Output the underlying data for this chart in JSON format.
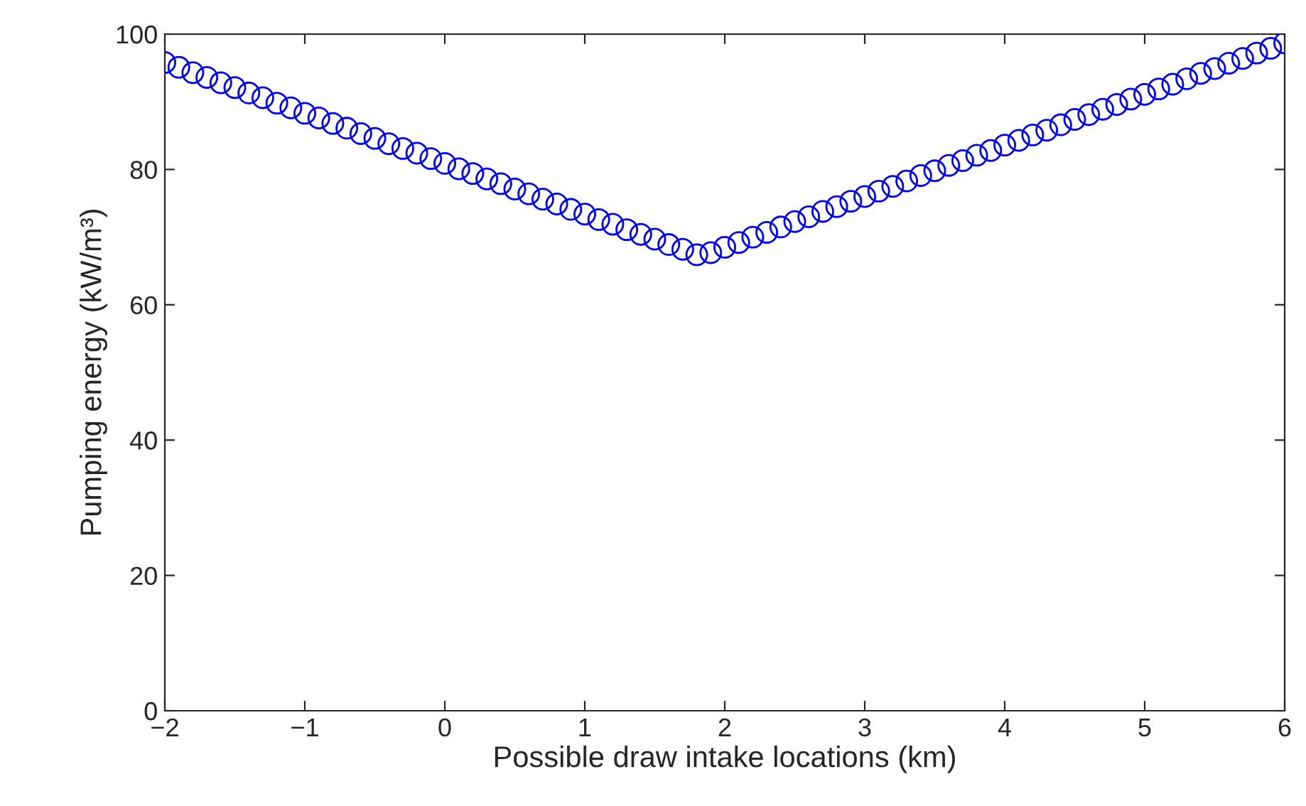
{
  "chart_data": {
    "type": "scatter",
    "xlabel": "Possible draw intake locations (km)",
    "ylabel": "Pumping energy (kW/m³)",
    "x": [
      -2.0,
      -1.9,
      -1.8,
      -1.7,
      -1.6,
      -1.5,
      -1.4,
      -1.3,
      -1.2,
      -1.1,
      -1.0,
      -0.9,
      -0.8,
      -0.7,
      -0.6,
      -0.5,
      -0.4,
      -0.3,
      -0.2,
      -0.1,
      0.0,
      0.1,
      0.2,
      0.3,
      0.4,
      0.5,
      0.6,
      0.7,
      0.8,
      0.9,
      1.0,
      1.1,
      1.2,
      1.3,
      1.4,
      1.5,
      1.6,
      1.7,
      1.8,
      1.9,
      2.0,
      2.1,
      2.2,
      2.3,
      2.4,
      2.5,
      2.6,
      2.7,
      2.8,
      2.9,
      3.0,
      3.1,
      3.2,
      3.3,
      3.4,
      3.5,
      3.6,
      3.7,
      3.8,
      3.9,
      4.0,
      4.1,
      4.2,
      4.3,
      4.4,
      4.5,
      4.6,
      4.7,
      4.8,
      4.9,
      5.0,
      5.1,
      5.2,
      5.3,
      5.4,
      5.5,
      5.6,
      5.7,
      5.8,
      5.9,
      6.0
    ],
    "series": [
      {
        "color": "#0000ff",
        "values": [
          95.8,
          95.1,
          94.3,
          93.6,
          92.8,
          92.1,
          91.3,
          90.6,
          89.8,
          89.1,
          88.3,
          87.6,
          86.8,
          86.1,
          85.3,
          84.6,
          83.8,
          83.1,
          82.4,
          81.6,
          80.9,
          80.1,
          79.4,
          78.6,
          77.9,
          77.1,
          76.4,
          75.6,
          74.9,
          74.1,
          73.4,
          72.6,
          71.9,
          71.1,
          70.4,
          69.7,
          68.9,
          68.2,
          67.4,
          67.7,
          68.5,
          69.2,
          70.0,
          70.7,
          71.5,
          72.3,
          73.0,
          73.8,
          74.5,
          75.3,
          76.0,
          76.8,
          77.5,
          78.3,
          79.1,
          79.8,
          80.6,
          81.3,
          82.1,
          82.8,
          83.6,
          84.3,
          85.1,
          85.8,
          86.6,
          87.4,
          88.1,
          88.9,
          89.6,
          90.4,
          91.1,
          91.9,
          92.6,
          93.4,
          94.2,
          94.9,
          95.7,
          96.4,
          97.2,
          97.9,
          98.7
        ]
      }
    ],
    "marker": "circle",
    "xlim": [
      -2,
      6
    ],
    "xticks": [
      {
        "value": -2,
        "label": "−2"
      },
      {
        "value": -1,
        "label": "−1"
      },
      0,
      1,
      2,
      3,
      4,
      5,
      6
    ],
    "ylim": [
      0,
      100
    ],
    "yticks": [
      0,
      20,
      40,
      60,
      80,
      100
    ],
    "grid": false,
    "legend": false
  }
}
